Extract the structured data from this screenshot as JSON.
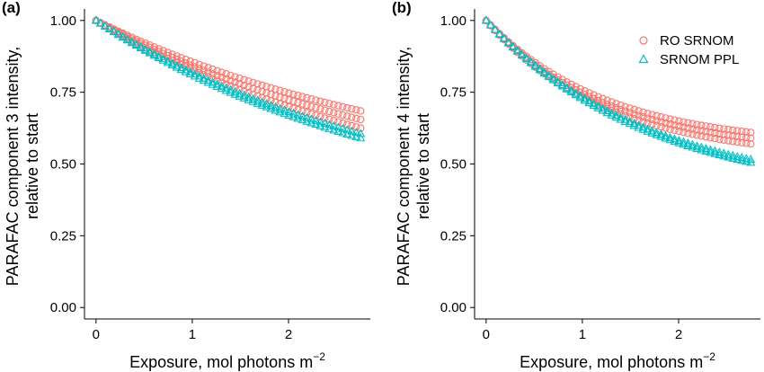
{
  "colors": {
    "series_a": "#F8766D",
    "series_b": "#00BFC4",
    "axis": "#000000"
  },
  "legend": {
    "placement": "top-right of panel (b)",
    "entries": [
      {
        "label": "RO SRNOM",
        "marker": "circle",
        "color": "#F8766D"
      },
      {
        "label": "SRNOM PPL",
        "marker": "triangle",
        "color": "#00BFC4"
      }
    ]
  },
  "chart_data": [
    {
      "type": "scatter",
      "panel_label": "(a)",
      "ylabel_line1": "PARAFAC component 3 intensity,",
      "ylabel_line2": "relative to start",
      "xlabel_text": "Exposure, mol photons m",
      "xlabel_sup": "−2",
      "xlim": [
        -0.12,
        2.85
      ],
      "ylim": [
        -0.04,
        1.04
      ],
      "xticks": [
        0,
        1,
        2
      ],
      "xtick_labels": [
        "0",
        "1",
        "2"
      ],
      "yticks": [
        0,
        0.25,
        0.5,
        0.75,
        1
      ],
      "ytick_labels": [
        "0.00",
        "0.25",
        "0.50",
        "0.75",
        "1.00"
      ],
      "grid": false,
      "series": [
        {
          "marker": "circle",
          "color": "#F8766D",
          "x_max": 2.75,
          "y_start": 1.0,
          "y_end": 0.685,
          "curvature": 0.8
        },
        {
          "marker": "circle",
          "color": "#F8766D",
          "x_max": 2.75,
          "y_start": 1.0,
          "y_end": 0.655,
          "curvature": 0.8
        },
        {
          "marker": "circle",
          "color": "#F8766D",
          "x_max": 2.75,
          "y_start": 1.0,
          "y_end": 0.625,
          "curvature": 0.8
        },
        {
          "marker": "triangle",
          "color": "#00BFC4",
          "x_max": 2.75,
          "y_start": 1.0,
          "y_end": 0.605,
          "curvature": 0.85
        },
        {
          "marker": "triangle",
          "color": "#00BFC4",
          "x_max": 2.75,
          "y_start": 1.0,
          "y_end": 0.59,
          "curvature": 0.85
        }
      ]
    },
    {
      "type": "scatter",
      "panel_label": "(b)",
      "ylabel_line1": "PARAFAC component 4 intensity,",
      "ylabel_line2": "relative to start",
      "xlabel_text": "Exposure, mol photons m",
      "xlabel_sup": "−2",
      "xlim": [
        -0.12,
        2.85
      ],
      "ylim": [
        -0.04,
        1.04
      ],
      "xticks": [
        0,
        1,
        2
      ],
      "xtick_labels": [
        "0",
        "1",
        "2"
      ],
      "yticks": [
        0,
        0.25,
        0.5,
        0.75,
        1
      ],
      "ytick_labels": [
        "0.00",
        "0.25",
        "0.50",
        "0.75",
        "1.00"
      ],
      "grid": false,
      "series": [
        {
          "marker": "circle",
          "color": "#F8766D",
          "x_max": 2.75,
          "y_start": 1.0,
          "y_end": 0.61,
          "curvature": 2.2
        },
        {
          "marker": "circle",
          "color": "#F8766D",
          "x_max": 2.75,
          "y_start": 1.0,
          "y_end": 0.59,
          "curvature": 2.2
        },
        {
          "marker": "circle",
          "color": "#F8766D",
          "x_max": 2.75,
          "y_start": 1.0,
          "y_end": 0.57,
          "curvature": 2.2
        },
        {
          "marker": "triangle",
          "color": "#00BFC4",
          "x_max": 2.75,
          "y_start": 1.0,
          "y_end": 0.515,
          "curvature": 1.6
        },
        {
          "marker": "triangle",
          "color": "#00BFC4",
          "x_max": 2.75,
          "y_start": 1.0,
          "y_end": 0.505,
          "curvature": 1.6
        }
      ]
    }
  ]
}
